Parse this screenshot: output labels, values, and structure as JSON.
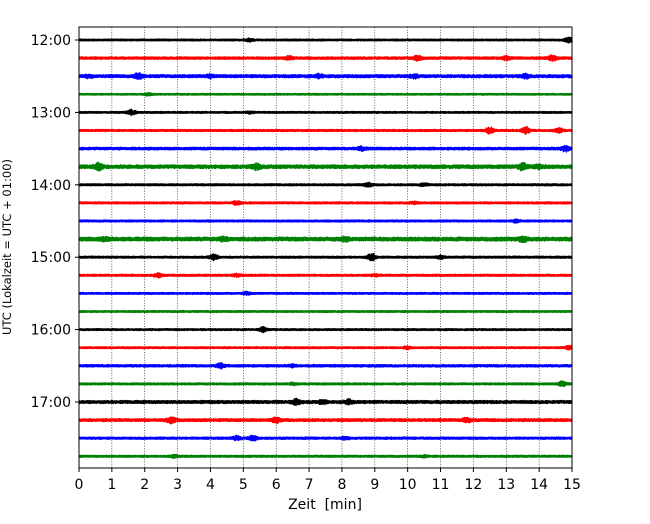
{
  "chart_data": {
    "type": "line",
    "title": "",
    "xlabel": "Zeit  [min]",
    "ylabel": "UTC (Lokalzeit = UTC + 01:00)",
    "xlim": [
      0,
      15
    ],
    "x_ticks": [
      0,
      1,
      2,
      3,
      4,
      5,
      6,
      7,
      8,
      9,
      10,
      11,
      12,
      13,
      14,
      15
    ],
    "y_ticks": [
      "12:00",
      "13:00",
      "14:00",
      "15:00",
      "16:00",
      "17:00"
    ],
    "grid": "vertical dotted at each minute",
    "trace_interval_minutes": 15,
    "colors": [
      "#000000",
      "#ff0000",
      "#0000ff",
      "#008000"
    ],
    "traces": [
      {
        "start": "12:00",
        "color": "#000000",
        "amplitude": 0.9,
        "bursts": [
          {
            "x": 5.2,
            "amp": 2.2
          },
          {
            "x": 14.9,
            "amp": 3.2
          }
        ]
      },
      {
        "start": "12:15",
        "color": "#ff0000",
        "amplitude": 1.2,
        "bursts": [
          {
            "x": 6.4,
            "amp": 3.0
          },
          {
            "x": 10.3,
            "amp": 3.2
          },
          {
            "x": 13.0,
            "amp": 2.8
          },
          {
            "x": 14.4,
            "amp": 3.4
          }
        ]
      },
      {
        "start": "12:30",
        "color": "#0000ff",
        "amplitude": 1.5,
        "bursts": [
          {
            "x": 0.3,
            "amp": 2.6
          },
          {
            "x": 1.8,
            "amp": 3.8
          },
          {
            "x": 4.0,
            "amp": 2.8
          },
          {
            "x": 7.3,
            "amp": 2.8
          },
          {
            "x": 10.2,
            "amp": 3.0
          },
          {
            "x": 13.6,
            "amp": 3.0
          }
        ]
      },
      {
        "start": "12:45",
        "color": "#008000",
        "amplitude": 0.8,
        "bursts": [
          {
            "x": 2.1,
            "amp": 2.0
          }
        ]
      },
      {
        "start": "13:00",
        "color": "#000000",
        "amplitude": 0.9,
        "bursts": [
          {
            "x": 1.6,
            "amp": 3.2
          },
          {
            "x": 5.2,
            "amp": 1.8
          }
        ]
      },
      {
        "start": "13:15",
        "color": "#ff0000",
        "amplitude": 1.0,
        "bursts": [
          {
            "x": 12.5,
            "amp": 3.8
          },
          {
            "x": 13.6,
            "amp": 4.0
          },
          {
            "x": 14.6,
            "amp": 3.0
          }
        ]
      },
      {
        "start": "13:30",
        "color": "#0000ff",
        "amplitude": 1.3,
        "bursts": [
          {
            "x": 8.6,
            "amp": 3.0
          },
          {
            "x": 14.8,
            "amp": 3.6
          }
        ]
      },
      {
        "start": "13:45",
        "color": "#008000",
        "amplitude": 1.8,
        "bursts": [
          {
            "x": 0.6,
            "amp": 4.6
          },
          {
            "x": 5.4,
            "amp": 4.0
          },
          {
            "x": 13.5,
            "amp": 4.8
          },
          {
            "x": 14.0,
            "amp": 3.4
          }
        ]
      },
      {
        "start": "14:00",
        "color": "#000000",
        "amplitude": 1.0,
        "bursts": [
          {
            "x": 8.8,
            "amp": 2.8
          },
          {
            "x": 10.5,
            "amp": 2.2
          }
        ]
      },
      {
        "start": "14:15",
        "color": "#ff0000",
        "amplitude": 1.0,
        "bursts": [
          {
            "x": 4.8,
            "amp": 2.6
          },
          {
            "x": 10.2,
            "amp": 1.8
          }
        ]
      },
      {
        "start": "14:30",
        "color": "#0000ff",
        "amplitude": 1.0,
        "bursts": [
          {
            "x": 13.3,
            "amp": 2.2
          }
        ]
      },
      {
        "start": "14:45",
        "color": "#008000",
        "amplitude": 1.9,
        "bursts": [
          {
            "x": 0.8,
            "amp": 3.0
          },
          {
            "x": 4.4,
            "amp": 3.4
          },
          {
            "x": 8.1,
            "amp": 3.2
          },
          {
            "x": 13.5,
            "amp": 3.8
          }
        ]
      },
      {
        "start": "15:00",
        "color": "#000000",
        "amplitude": 1.0,
        "bursts": [
          {
            "x": 4.1,
            "amp": 3.4
          },
          {
            "x": 8.9,
            "amp": 4.4
          },
          {
            "x": 11.0,
            "amp": 2.4
          }
        ]
      },
      {
        "start": "15:15",
        "color": "#ff0000",
        "amplitude": 1.0,
        "bursts": [
          {
            "x": 2.4,
            "amp": 2.8
          },
          {
            "x": 4.8,
            "amp": 2.2
          },
          {
            "x": 9.0,
            "amp": 1.8
          }
        ]
      },
      {
        "start": "15:30",
        "color": "#0000ff",
        "amplitude": 0.9,
        "bursts": [
          {
            "x": 5.1,
            "amp": 2.2
          }
        ]
      },
      {
        "start": "15:45",
        "color": "#008000",
        "amplitude": 0.9,
        "bursts": []
      },
      {
        "start": "16:00",
        "color": "#000000",
        "amplitude": 0.9,
        "bursts": [
          {
            "x": 5.6,
            "amp": 3.4
          }
        ]
      },
      {
        "start": "16:15",
        "color": "#ff0000",
        "amplitude": 0.9,
        "bursts": [
          {
            "x": 10.0,
            "amp": 2.0
          },
          {
            "x": 14.9,
            "amp": 2.6
          }
        ]
      },
      {
        "start": "16:30",
        "color": "#0000ff",
        "amplitude": 1.2,
        "bursts": [
          {
            "x": 4.3,
            "amp": 3.4
          },
          {
            "x": 6.5,
            "amp": 2.2
          }
        ]
      },
      {
        "start": "16:45",
        "color": "#008000",
        "amplitude": 1.0,
        "bursts": [
          {
            "x": 6.5,
            "amp": 2.0
          },
          {
            "x": 14.7,
            "amp": 3.0
          }
        ]
      },
      {
        "start": "17:00",
        "color": "#000000",
        "amplitude": 1.5,
        "bursts": [
          {
            "x": 6.6,
            "amp": 3.6
          },
          {
            "x": 7.4,
            "amp": 3.0
          },
          {
            "x": 8.2,
            "amp": 3.4
          }
        ]
      },
      {
        "start": "17:15",
        "color": "#ff0000",
        "amplitude": 1.4,
        "bursts": [
          {
            "x": 2.8,
            "amp": 4.0
          },
          {
            "x": 6.0,
            "amp": 3.6
          },
          {
            "x": 11.8,
            "amp": 3.4
          }
        ]
      },
      {
        "start": "17:30",
        "color": "#0000ff",
        "amplitude": 1.1,
        "bursts": [
          {
            "x": 4.8,
            "amp": 2.8
          },
          {
            "x": 5.3,
            "amp": 3.2
          },
          {
            "x": 8.1,
            "amp": 2.2
          }
        ]
      },
      {
        "start": "17:45",
        "color": "#008000",
        "amplitude": 1.0,
        "bursts": [
          {
            "x": 2.9,
            "amp": 2.0
          },
          {
            "x": 10.5,
            "amp": 1.8
          }
        ]
      }
    ]
  }
}
